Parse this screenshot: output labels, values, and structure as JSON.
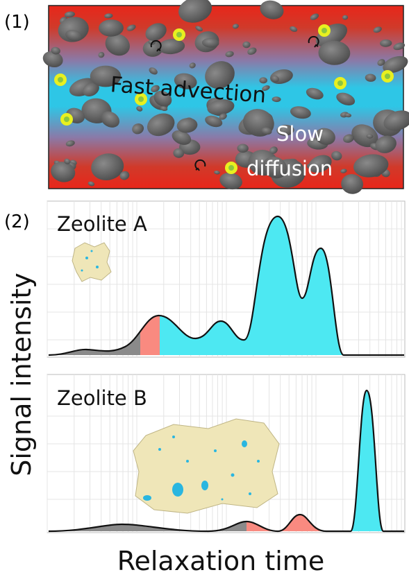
{
  "panel_labels": [
    "(1)",
    "(2)"
  ],
  "illustration": {
    "flow_label": "Fast advection",
    "diffusion_label_1": "Slow",
    "diffusion_label_2": "diffusion"
  },
  "plots": [
    {
      "label": "Zeolite A"
    },
    {
      "label": "Zeolite B"
    }
  ],
  "y_axis_label": "Signal intensity",
  "x_axis_label": "Relaxation time"
}
